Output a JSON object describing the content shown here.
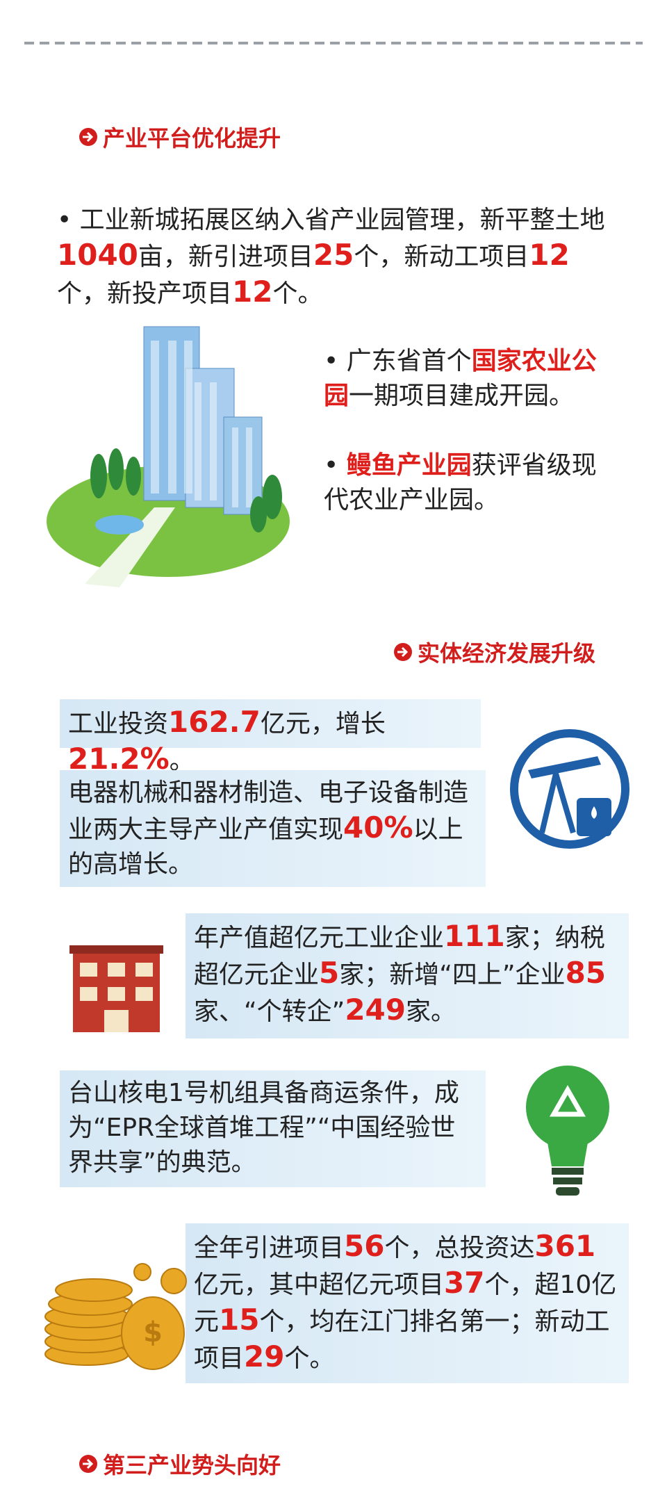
{
  "headings": [
    "产业平台优化提升",
    "实体经济发展升级",
    "第三产业势头向好"
  ],
  "paragraphs": [
    [
      {
        "text": "• 工业新城拓展区纳入省产业园管理，新平整土地",
        "red": false
      },
      {
        "text": "1040",
        "red": true
      },
      {
        "text": "亩，新引进项目",
        "red": false
      },
      {
        "text": "25",
        "red": true
      },
      {
        "text": "个，新动工项目",
        "red": false
      },
      {
        "text": "12",
        "red": true
      },
      {
        "text": "个，新投产项目",
        "red": false
      },
      {
        "text": "12",
        "red": true
      },
      {
        "text": "个。",
        "red": false
      }
    ],
    [
      {
        "text": "• 广东省首个",
        "red": false
      },
      {
        "text": "国家农业公园",
        "red": true
      },
      {
        "text": "一期项目建成开园。",
        "red": false
      }
    ],
    [
      {
        "text": "• ",
        "red": false
      },
      {
        "text": "鳗鱼产业园",
        "red": true
      },
      {
        "text": "获评省级现代农业产业园。",
        "red": false
      }
    ],
    [
      {
        "text": "工业投资",
        "red": false
      },
      {
        "text": "162.7",
        "red": true
      },
      {
        "text": "亿元，增长",
        "red": false
      },
      {
        "text": "21.2%",
        "red": true
      },
      {
        "text": "。",
        "red": false
      }
    ],
    [
      {
        "text": "电器机械和器材制造、电子设备制造业两大主导产业产值实现",
        "red": false
      },
      {
        "text": "40%",
        "red": true
      },
      {
        "text": "以上的高增长。",
        "red": false
      }
    ],
    [
      {
        "text": "年产值超亿元工业企业",
        "red": false
      },
      {
        "text": "111",
        "red": true
      },
      {
        "text": "家；纳税超亿元企业",
        "red": false
      },
      {
        "text": "5",
        "red": true
      },
      {
        "text": "家；新增“四上”企业",
        "red": false
      },
      {
        "text": "85",
        "red": true
      },
      {
        "text": "家、“个转企”",
        "red": false
      },
      {
        "text": "249",
        "red": true
      },
      {
        "text": "家。",
        "red": false
      }
    ],
    [
      {
        "text": "台山核电1号机组具备商运条件，成为“EPR全球首堆工程”“中国经验世界共享”的典范。",
        "red": false
      }
    ],
    [
      {
        "text": "全年引进项目",
        "red": false
      },
      {
        "text": "56",
        "red": true
      },
      {
        "text": "个，总投资达",
        "red": false
      },
      {
        "text": "361",
        "red": true
      },
      {
        "text": "亿元，其中超亿元项目",
        "red": false
      },
      {
        "text": "37",
        "red": true
      },
      {
        "text": "个，超10亿元",
        "red": false
      },
      {
        "text": "15",
        "red": true
      },
      {
        "text": "个，均在江门排名第一；新动工项目",
        "red": false
      },
      {
        "text": "29",
        "red": true
      },
      {
        "text": "个。",
        "red": false
      }
    ]
  ]
}
